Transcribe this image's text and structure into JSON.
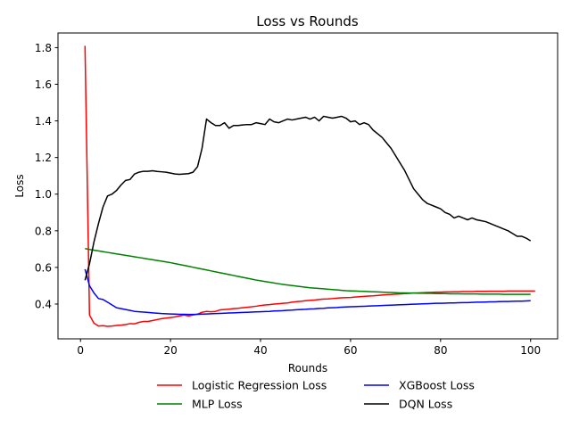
{
  "chart_data": {
    "type": "line",
    "title": "Loss vs Rounds",
    "xlabel": "Rounds",
    "ylabel": "Loss",
    "xlim": [
      -5,
      106
    ],
    "ylim": [
      0.21,
      1.88
    ],
    "xticks": [
      0,
      20,
      40,
      60,
      80,
      100
    ],
    "yticks": [
      0.4,
      0.6,
      0.8,
      1.0,
      1.2,
      1.4,
      1.6,
      1.8
    ],
    "ytick_labels": [
      "0.4",
      "0.6",
      "0.8",
      "1.0",
      "1.2",
      "1.4",
      "1.6",
      "1.8"
    ],
    "legend_position": "below-center",
    "series": [
      {
        "name": "Logistic Regression Loss",
        "color": "#ff0000",
        "x_start": 1,
        "values": [
          1.81,
          0.34,
          0.295,
          0.28,
          0.282,
          0.278,
          0.28,
          0.283,
          0.285,
          0.288,
          0.293,
          0.292,
          0.3,
          0.305,
          0.305,
          0.31,
          0.315,
          0.32,
          0.323,
          0.326,
          0.33,
          0.335,
          0.34,
          0.335,
          0.34,
          0.345,
          0.355,
          0.36,
          0.358,
          0.36,
          0.368,
          0.37,
          0.372,
          0.375,
          0.377,
          0.38,
          0.382,
          0.385,
          0.388,
          0.392,
          0.395,
          0.397,
          0.4,
          0.402,
          0.404,
          0.406,
          0.41,
          0.413,
          0.415,
          0.418,
          0.42,
          0.422,
          0.425,
          0.427,
          0.428,
          0.43,
          0.432,
          0.434,
          0.435,
          0.436,
          0.438,
          0.44,
          0.442,
          0.444,
          0.445,
          0.447,
          0.449,
          0.451,
          0.452,
          0.454,
          0.455,
          0.457,
          0.458,
          0.46,
          0.461,
          0.462,
          0.463,
          0.464,
          0.465,
          0.465,
          0.466,
          0.466,
          0.467,
          0.467,
          0.468,
          0.468,
          0.468,
          0.469,
          0.469,
          0.469,
          0.47,
          0.47,
          0.47,
          0.47,
          0.471,
          0.471,
          0.471,
          0.471,
          0.471,
          0.471,
          0.471
        ]
      },
      {
        "name": "XGBoost Loss",
        "color": "#0000ff",
        "x_start": 1,
        "values": [
          0.59,
          0.5,
          0.46,
          0.43,
          0.425,
          0.41,
          0.395,
          0.38,
          0.375,
          0.37,
          0.365,
          0.36,
          0.358,
          0.356,
          0.354,
          0.352,
          0.35,
          0.348,
          0.347,
          0.346,
          0.345,
          0.344,
          0.344,
          0.343,
          0.343,
          0.344,
          0.345,
          0.346,
          0.347,
          0.348,
          0.349,
          0.35,
          0.351,
          0.352,
          0.353,
          0.354,
          0.355,
          0.356,
          0.357,
          0.358,
          0.359,
          0.36,
          0.362,
          0.363,
          0.364,
          0.366,
          0.367,
          0.369,
          0.37,
          0.371,
          0.373,
          0.374,
          0.376,
          0.377,
          0.379,
          0.38,
          0.381,
          0.383,
          0.384,
          0.385,
          0.386,
          0.387,
          0.388,
          0.389,
          0.39,
          0.391,
          0.392,
          0.393,
          0.394,
          0.395,
          0.396,
          0.397,
          0.398,
          0.399,
          0.4,
          0.401,
          0.402,
          0.403,
          0.404,
          0.404,
          0.405,
          0.406,
          0.406,
          0.407,
          0.408,
          0.408,
          0.409,
          0.41,
          0.41,
          0.411,
          0.412,
          0.412,
          0.413,
          0.414,
          0.414,
          0.415,
          0.416,
          0.416,
          0.417,
          0.418
        ]
      },
      {
        "name": "MLP Loss",
        "color": "#008000",
        "x_start": 1,
        "values": [
          0.703,
          0.698,
          0.694,
          0.69,
          0.686,
          0.682,
          0.678,
          0.674,
          0.67,
          0.666,
          0.662,
          0.658,
          0.654,
          0.65,
          0.646,
          0.642,
          0.638,
          0.634,
          0.63,
          0.626,
          0.621,
          0.616,
          0.611,
          0.606,
          0.601,
          0.596,
          0.591,
          0.586,
          0.581,
          0.576,
          0.571,
          0.566,
          0.561,
          0.556,
          0.551,
          0.546,
          0.541,
          0.536,
          0.531,
          0.527,
          0.523,
          0.519,
          0.515,
          0.511,
          0.507,
          0.504,
          0.501,
          0.498,
          0.495,
          0.492,
          0.489,
          0.487,
          0.485,
          0.483,
          0.481,
          0.479,
          0.477,
          0.475,
          0.473,
          0.472,
          0.471,
          0.47,
          0.469,
          0.468,
          0.467,
          0.466,
          0.465,
          0.464,
          0.463,
          0.462,
          0.461,
          0.461,
          0.46,
          0.46,
          0.459,
          0.459,
          0.458,
          0.458,
          0.457,
          0.457,
          0.457,
          0.456,
          0.456,
          0.456,
          0.455,
          0.455,
          0.455,
          0.455,
          0.454,
          0.454,
          0.454,
          0.454,
          0.454,
          0.453,
          0.453,
          0.453,
          0.453,
          0.453,
          0.453,
          0.453
        ]
      },
      {
        "name": "DQN Loss",
        "color": "#000000",
        "x_start": 1,
        "values": [
          0.53,
          0.62,
          0.74,
          0.84,
          0.93,
          0.99,
          1.0,
          1.02,
          1.05,
          1.075,
          1.08,
          1.11,
          1.12,
          1.125,
          1.125,
          1.128,
          1.124,
          1.122,
          1.12,
          1.115,
          1.11,
          1.108,
          1.11,
          1.112,
          1.12,
          1.15,
          1.25,
          1.41,
          1.39,
          1.375,
          1.375,
          1.39,
          1.36,
          1.375,
          1.375,
          1.378,
          1.38,
          1.38,
          1.39,
          1.385,
          1.38,
          1.41,
          1.395,
          1.39,
          1.4,
          1.41,
          1.405,
          1.41,
          1.415,
          1.42,
          1.41,
          1.42,
          1.4,
          1.425,
          1.42,
          1.415,
          1.42,
          1.425,
          1.415,
          1.395,
          1.4,
          1.38,
          1.39,
          1.38,
          1.35,
          1.33,
          1.31,
          1.28,
          1.25,
          1.21,
          1.17,
          1.13,
          1.08,
          1.03,
          1.0,
          0.97,
          0.95,
          0.94,
          0.93,
          0.92,
          0.9,
          0.89,
          0.87,
          0.88,
          0.87,
          0.86,
          0.87,
          0.86,
          0.855,
          0.85,
          0.84,
          0.83,
          0.82,
          0.81,
          0.8,
          0.785,
          0.77,
          0.77,
          0.76,
          0.745
        ]
      }
    ]
  }
}
